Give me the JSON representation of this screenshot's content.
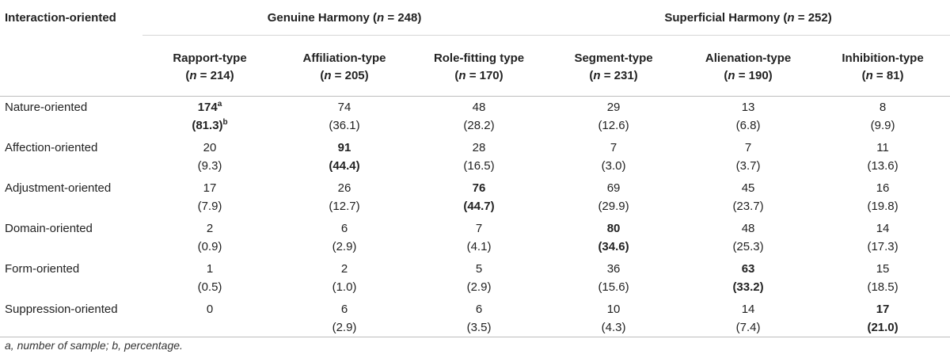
{
  "table": {
    "corner_header": "Interaction-oriented",
    "groups": [
      {
        "label_prefix": "Genuine Harmony (",
        "n_var": "n",
        "label_suffix": " = 248)"
      },
      {
        "label_prefix": "Superficial Harmony (",
        "n_var": "n",
        "label_suffix": " = 252)"
      }
    ],
    "columns": [
      {
        "name": "Rapport-type",
        "n_var": "n",
        "n_value": " = 214)"
      },
      {
        "name": "Affiliation-type",
        "n_var": "n",
        "n_value": " = 205)"
      },
      {
        "name": "Role-fitting type",
        "n_var": "n",
        "n_value": " = 170)"
      },
      {
        "name": "Segment-type",
        "n_var": "n",
        "n_value": " = 231)"
      },
      {
        "name": "Alienation-type",
        "n_var": "n",
        "n_value": " = 190)"
      },
      {
        "name": "Inhibition-type",
        "n_var": "n",
        "n_value": " = 81)"
      }
    ],
    "rows": [
      {
        "label": "Nature-oriented",
        "cells": [
          {
            "n": "174",
            "p": "(81.3)",
            "bold": true,
            "n_sup": "a",
            "p_sup": "b"
          },
          {
            "n": "74",
            "p": "(36.1)"
          },
          {
            "n": "48",
            "p": "(28.2)"
          },
          {
            "n": "29",
            "p": "(12.6)"
          },
          {
            "n": "13",
            "p": "(6.8)"
          },
          {
            "n": "8",
            "p": "(9.9)"
          }
        ]
      },
      {
        "label": "Affection-oriented",
        "cells": [
          {
            "n": "20",
            "p": "(9.3)"
          },
          {
            "n": "91",
            "p": "(44.4)",
            "bold": true
          },
          {
            "n": "28",
            "p": "(16.5)"
          },
          {
            "n": "7",
            "p": "(3.0)"
          },
          {
            "n": "7",
            "p": "(3.7)"
          },
          {
            "n": "11",
            "p": "(13.6)"
          }
        ]
      },
      {
        "label": "Adjustment-oriented",
        "cells": [
          {
            "n": "17",
            "p": "(7.9)"
          },
          {
            "n": "26",
            "p": "(12.7)"
          },
          {
            "n": "76",
            "p": "(44.7)",
            "bold": true
          },
          {
            "n": "69",
            "p": "(29.9)"
          },
          {
            "n": "45",
            "p": "(23.7)"
          },
          {
            "n": "16",
            "p": "(19.8)"
          }
        ]
      },
      {
        "label": "Domain-oriented",
        "cells": [
          {
            "n": "2",
            "p": "(0.9)"
          },
          {
            "n": "6",
            "p": "(2.9)"
          },
          {
            "n": "7",
            "p": "(4.1)"
          },
          {
            "n": "80",
            "p": "(34.6)",
            "bold": true
          },
          {
            "n": "48",
            "p": "(25.3)"
          },
          {
            "n": "14",
            "p": "(17.3)"
          }
        ]
      },
      {
        "label": "Form-oriented",
        "cells": [
          {
            "n": "1",
            "p": "(0.5)"
          },
          {
            "n": "2",
            "p": "(1.0)"
          },
          {
            "n": "5",
            "p": "(2.9)"
          },
          {
            "n": "36",
            "p": "(15.6)"
          },
          {
            "n": "63",
            "p": "(33.2)",
            "bold": true
          },
          {
            "n": "15",
            "p": "(18.5)"
          }
        ]
      },
      {
        "label": "Suppression-oriented",
        "cells": [
          {
            "n": "0",
            "p": ""
          },
          {
            "n": "6",
            "p": "(2.9)"
          },
          {
            "n": "6",
            "p": "(3.5)"
          },
          {
            "n": "10",
            "p": "(4.3)"
          },
          {
            "n": "14",
            "p": "(7.4)"
          },
          {
            "n": "17",
            "p": "(21.0)",
            "bold": true
          }
        ]
      }
    ],
    "footnote": "a, number of sample; b, percentage."
  }
}
